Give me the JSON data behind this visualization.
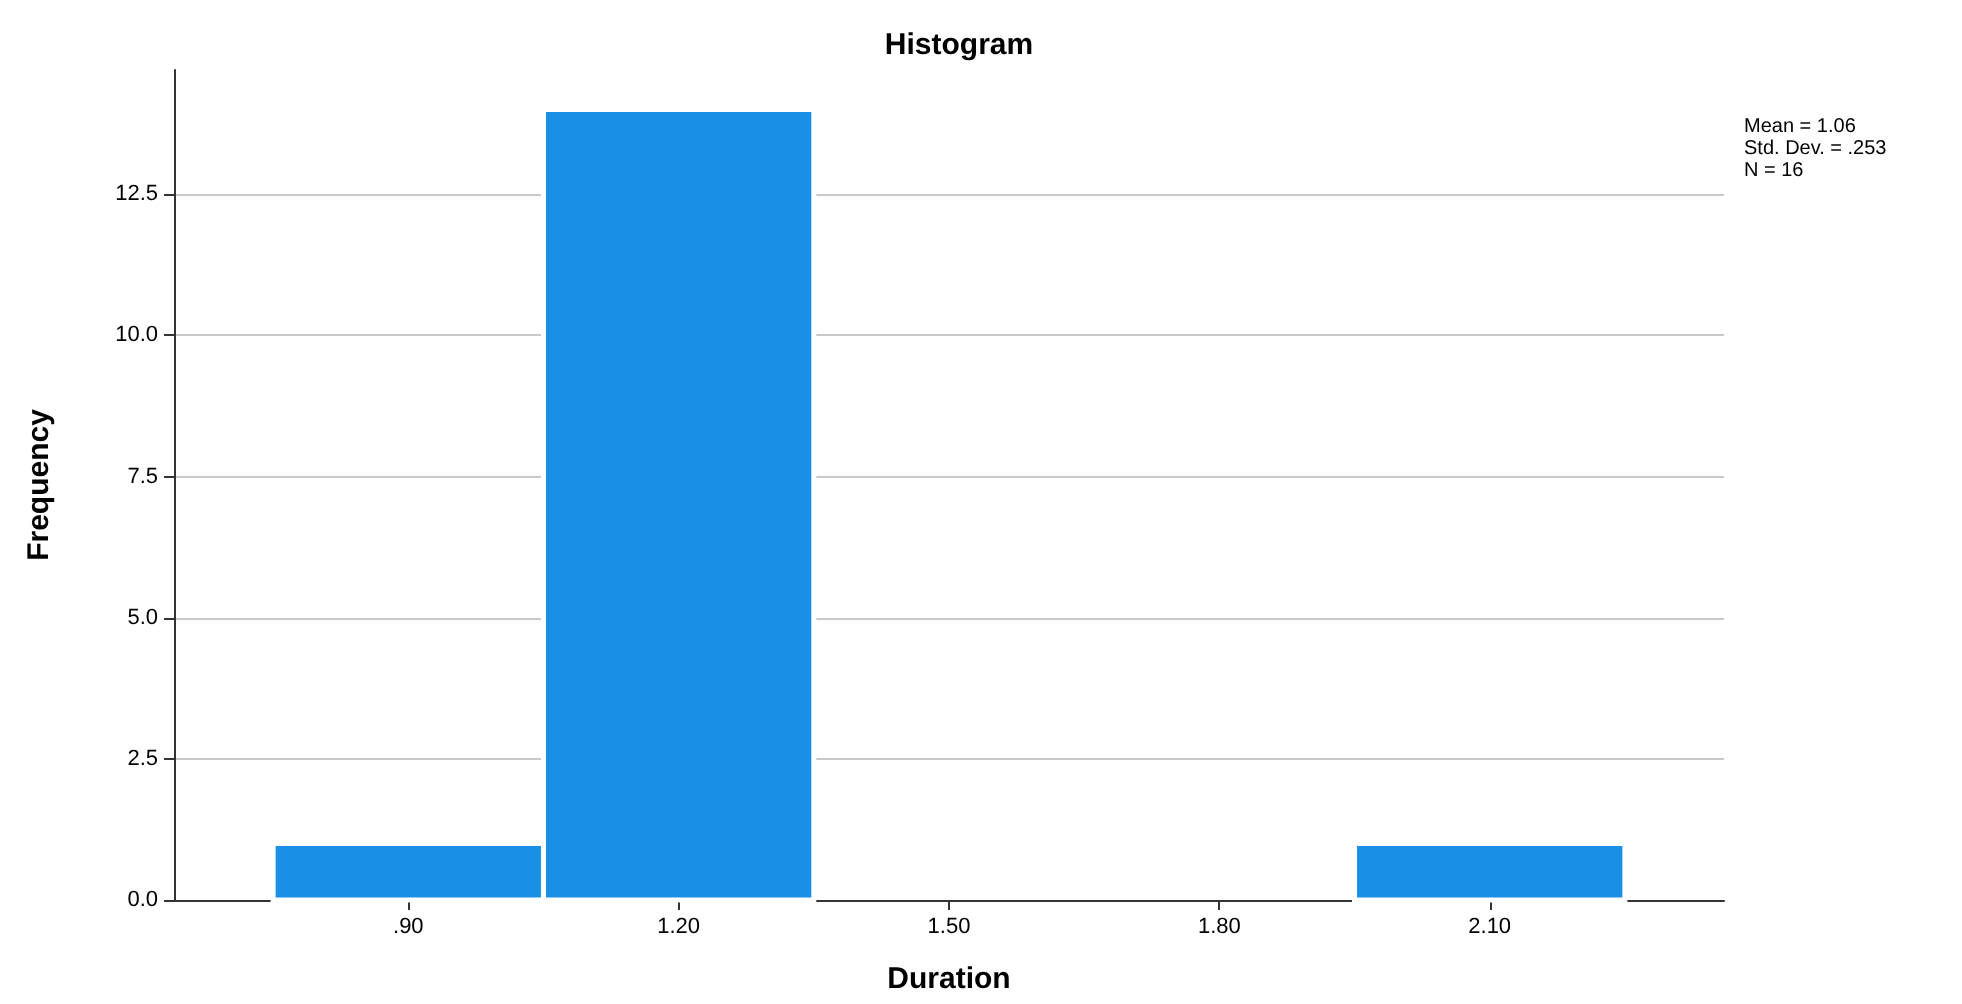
{
  "chart_data": {
    "type": "histogram",
    "title": "Histogram",
    "xlabel": "Duration",
    "ylabel": "Frequency",
    "bins": [
      0.75,
      1.05,
      1.35,
      1.65,
      1.95,
      2.25
    ],
    "values": [
      1,
      14,
      0,
      0,
      1
    ],
    "color": "#1a8fe6",
    "xlim": [
      0.64,
      2.36
    ],
    "xticks": [
      {
        "value": 0.9,
        "label": ".90"
      },
      {
        "value": 1.2,
        "label": "1.20"
      },
      {
        "value": 1.5,
        "label": "1.50"
      },
      {
        "value": 1.8,
        "label": "1.80"
      },
      {
        "value": 2.1,
        "label": "2.10"
      }
    ],
    "ylim": [
      0,
      14.7
    ],
    "yticks": [
      {
        "value": 0,
        "label": "0.0"
      },
      {
        "value": 2.5,
        "label": "2.5"
      },
      {
        "value": 5,
        "label": "5.0"
      },
      {
        "value": 7.5,
        "label": "7.5"
      },
      {
        "value": 10,
        "label": "10.0"
      },
      {
        "value": 12.5,
        "label": "12.5"
      }
    ],
    "grid": "y",
    "annotations": [
      "Mean = 1.06",
      "Std. Dev. = .253",
      "N = 16"
    ]
  }
}
